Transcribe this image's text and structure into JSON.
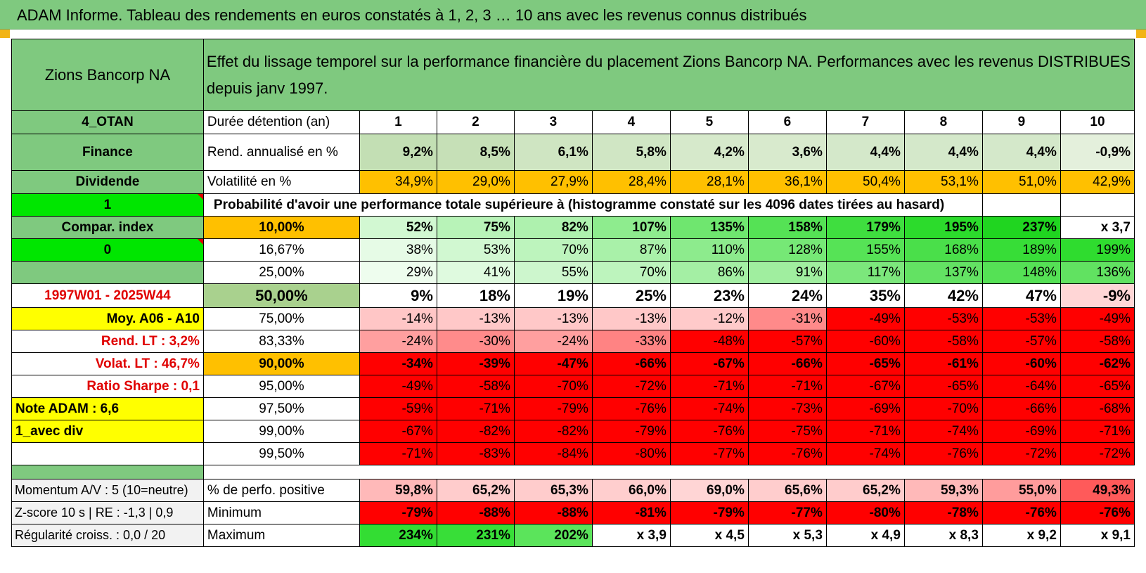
{
  "title": "ADAM Informe. Tableau des rendements en euros constatés à 1, 2, 3 … 10 ans avec les revenus connus distribués",
  "header": {
    "name": "Zions Bancorp NA",
    "description": "Effet du lissage temporel sur la performance financière du placement Zions Bancorp NA. Performances avec les revenus DISTRIBUES depuis janv 1997."
  },
  "years": [
    "1",
    "2",
    "3",
    "4",
    "5",
    "6",
    "7",
    "8",
    "9",
    "10"
  ],
  "left_labels": {
    "zone": "4_OTAN",
    "sector": "Finance",
    "type": "Dividende",
    "flag1": "1",
    "compar": "Compar. index",
    "flag0": "0",
    "blank": "",
    "period": "1997W01 - 2025W44",
    "moy": "Moy. A06 - A10",
    "rend_lt": "Rend. LT :   3,2%",
    "volat_lt": "Volat. LT :   46,7%",
    "sharpe": "Ratio Sharpe :   0,1",
    "note": "Note ADAM : 6,6",
    "avec_div": "1_avec div",
    "blank2": ""
  },
  "rows": {
    "duree": {
      "label": "Durée détention (an)"
    },
    "rend": {
      "label": "Rend. annualisé en %",
      "values": [
        "9,2%",
        "8,5%",
        "6,1%",
        "5,8%",
        "4,2%",
        "3,6%",
        "4,4%",
        "4,4%",
        "4,4%",
        "-0,9%"
      ]
    },
    "vol": {
      "label": "Volatilité en %",
      "values": [
        "34,9%",
        "29,0%",
        "27,9%",
        "28,4%",
        "28,1%",
        "36,1%",
        "50,4%",
        "53,1%",
        "51,0%",
        "42,9%"
      ]
    },
    "proba_title": "Probabilité d'avoir une performance totale supérieure à (histogramme constaté sur les 4096 dates tirées au hasard)"
  },
  "quantiles": [
    {
      "q": "10,00%",
      "values": [
        "52%",
        "75%",
        "82%",
        "107%",
        "135%",
        "158%",
        "179%",
        "195%",
        "237%",
        "x 3,7"
      ]
    },
    {
      "q": "16,67%",
      "values": [
        "38%",
        "53%",
        "70%",
        "87%",
        "110%",
        "128%",
        "155%",
        "168%",
        "189%",
        "199%"
      ]
    },
    {
      "q": "25,00%",
      "values": [
        "29%",
        "41%",
        "55%",
        "70%",
        "86%",
        "91%",
        "117%",
        "137%",
        "148%",
        "136%"
      ]
    },
    {
      "q": "50,00%",
      "values": [
        "9%",
        "18%",
        "19%",
        "25%",
        "23%",
        "24%",
        "35%",
        "42%",
        "47%",
        "-9%"
      ]
    },
    {
      "q": "75,00%",
      "values": [
        "-14%",
        "-13%",
        "-13%",
        "-13%",
        "-12%",
        "-31%",
        "-49%",
        "-53%",
        "-53%",
        "-49%"
      ]
    },
    {
      "q": "83,33%",
      "values": [
        "-24%",
        "-30%",
        "-24%",
        "-33%",
        "-48%",
        "-57%",
        "-60%",
        "-58%",
        "-57%",
        "-58%"
      ]
    },
    {
      "q": "90,00%",
      "values": [
        "-34%",
        "-39%",
        "-47%",
        "-66%",
        "-67%",
        "-66%",
        "-65%",
        "-61%",
        "-60%",
        "-62%"
      ]
    },
    {
      "q": "95,00%",
      "values": [
        "-49%",
        "-58%",
        "-70%",
        "-72%",
        "-71%",
        "-71%",
        "-67%",
        "-65%",
        "-64%",
        "-65%"
      ]
    },
    {
      "q": "97,50%",
      "values": [
        "-59%",
        "-71%",
        "-79%",
        "-76%",
        "-74%",
        "-73%",
        "-69%",
        "-70%",
        "-66%",
        "-68%"
      ]
    },
    {
      "q": "99,00%",
      "values": [
        "-67%",
        "-82%",
        "-82%",
        "-79%",
        "-76%",
        "-75%",
        "-71%",
        "-74%",
        "-69%",
        "-71%"
      ]
    },
    {
      "q": "99,50%",
      "values": [
        "-71%",
        "-83%",
        "-84%",
        "-80%",
        "-77%",
        "-76%",
        "-74%",
        "-76%",
        "-72%",
        "-72%"
      ]
    }
  ],
  "footer": [
    {
      "left": "Momentum A/V : 5 (10=neutre)",
      "label": "% de perfo. positive",
      "values": [
        "59,8%",
        "65,2%",
        "65,3%",
        "66,0%",
        "69,0%",
        "65,6%",
        "65,2%",
        "59,3%",
        "55,0%",
        "49,3%"
      ]
    },
    {
      "left": "Z-score 10 s | RE : -1,3 | 0,9",
      "label": "Minimum",
      "values": [
        "-79%",
        "-88%",
        "-88%",
        "-81%",
        "-79%",
        "-77%",
        "-80%",
        "-78%",
        "-76%",
        "-76%"
      ]
    },
    {
      "left": "Régularité croiss. : 0,0 / 20",
      "label": "Maximum",
      "values": [
        "234%",
        "231%",
        "202%",
        "x 3,9",
        "x 4,5",
        "x 5,3",
        "x 4,9",
        "x 8,3",
        "x 9,2",
        "x 9,1"
      ]
    }
  ],
  "colors": {
    "header_green": "#7fc97f",
    "bright_green": "#00e600",
    "yellow": "#ffff00",
    "orange": "#ffc000",
    "red": "#ff0000"
  },
  "cell_colors": {
    "rend": [
      "#c3dfb4",
      "#c6e0b7",
      "#cfe5c2",
      "#d0e6c4",
      "#d6e9cb",
      "#d8eacd",
      "#d4e8ca",
      "#d4e8ca",
      "#d4e8ca",
      "#e4f0dc"
    ],
    "vol": [
      "#ffc000",
      "#ffc000",
      "#ffc000",
      "#ffc000",
      "#ffc000",
      "#ffc000",
      "#ffc000",
      "#ffc000",
      "#ffc000",
      "#ffc000"
    ],
    "quantiles": [
      [
        "#d2f8d2",
        "#b8f3b8",
        "#aef1ae",
        "#8eec8e",
        "#6fe66f",
        "#55e255",
        "#3fde3f",
        "#2cdb2c",
        "#20d520",
        "#ffffff"
      ],
      [
        "#e6fbe6",
        "#d1f8d1",
        "#bdf4bd",
        "#a9f1a9",
        "#8deb8d",
        "#76e876",
        "#56e356",
        "#4adf4a",
        "#37dd37",
        "#2fdc2f"
      ],
      [
        "#eefdee",
        "#dffadf",
        "#cdf6cd",
        "#bdf4bd",
        "#a4efa4",
        "#a0ee9f",
        "#7ce77c",
        "#63e263",
        "#55e155",
        "#61e261"
      ],
      [
        "#ffffff",
        "#ffffff",
        "#ffffff",
        "#ffffff",
        "#ffffff",
        "#ffffff",
        "#ffffff",
        "#ffffff",
        "#ffffff",
        "#ffd6d6"
      ],
      [
        "#ffc6c6",
        "#ffc8c8",
        "#ffc8c8",
        "#ffc8c8",
        "#ffcaca",
        "#ff8a8a",
        "#ff0000",
        "#ff0000",
        "#ff0000",
        "#ff0000"
      ],
      [
        "#ff9f9f",
        "#ff8b8b",
        "#ff9f9f",
        "#ff8383",
        "#ff0000",
        "#ff0000",
        "#ff0000",
        "#ff0000",
        "#ff0000",
        "#ff0000"
      ],
      [
        "#ff0000",
        "#ff0000",
        "#ff0000",
        "#ff0000",
        "#ff0000",
        "#ff0000",
        "#ff0000",
        "#ff0000",
        "#ff0000",
        "#ff0000"
      ],
      [
        "#ff0000",
        "#ff0000",
        "#ff0000",
        "#ff0000",
        "#ff0000",
        "#ff0000",
        "#ff0000",
        "#ff0000",
        "#ff0000",
        "#ff0000"
      ],
      [
        "#ff0000",
        "#ff0000",
        "#ff0000",
        "#ff0000",
        "#ff0000",
        "#ff0000",
        "#ff0000",
        "#ff0000",
        "#ff0000",
        "#ff0000"
      ],
      [
        "#ff0000",
        "#ff0000",
        "#ff0000",
        "#ff0000",
        "#ff0000",
        "#ff0000",
        "#ff0000",
        "#ff0000",
        "#ff0000",
        "#ff0000"
      ],
      [
        "#ff0000",
        "#ff0000",
        "#ff0000",
        "#ff0000",
        "#ff0000",
        "#ff0000",
        "#ff0000",
        "#ff0000",
        "#ff0000",
        "#ff0000"
      ]
    ],
    "footer": [
      [
        "#ffb9b9",
        "#ffcccc",
        "#ffcccc",
        "#ffcece",
        "#ffd5d5",
        "#ffcdcd",
        "#ffcccc",
        "#ffb9b9",
        "#ff9c9c",
        "#ff5a5a"
      ],
      [
        "#ff0000",
        "#ff0000",
        "#ff0000",
        "#ff0000",
        "#ff0000",
        "#ff0000",
        "#ff0000",
        "#ff0000",
        "#ff0000",
        "#ff0000"
      ],
      [
        "#33dd33",
        "#38de38",
        "#5be45b",
        "#ffffff",
        "#ffffff",
        "#ffffff",
        "#ffffff",
        "#ffffff",
        "#ffffff",
        "#ffffff"
      ]
    ]
  }
}
